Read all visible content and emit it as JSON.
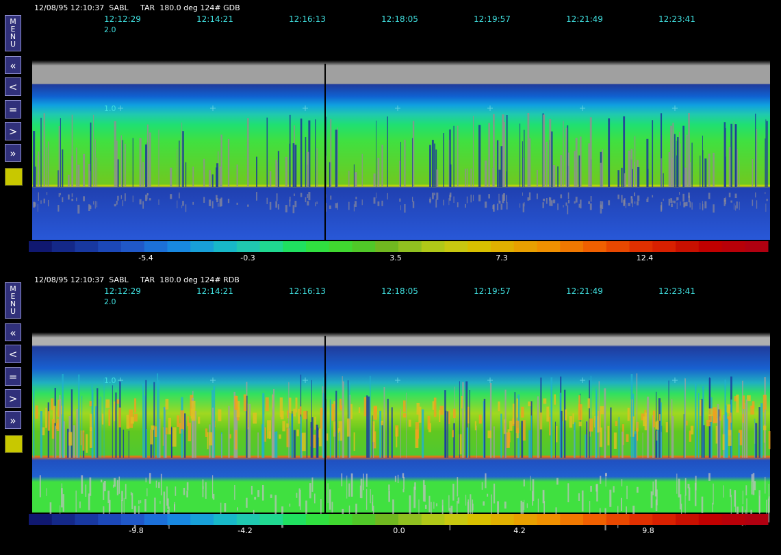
{
  "panels": [
    {
      "header": "12/08/95 12:10:37  SABL     TAR  180.0 deg 124# GDB",
      "buttons": [
        "MENU",
        "«",
        "<",
        "=",
        ">",
        "»"
      ],
      "times": [
        "12:12:29",
        "12:14:21",
        "12:16:13",
        "12:18:05",
        "12:19:57",
        "12:21:49",
        "12:23:41"
      ],
      "top_label": "2.0",
      "range_label": "1.0",
      "colorbar_labels": [
        "-5.4",
        "-0.3",
        "3.5",
        "7.3",
        "12.4"
      ]
    },
    {
      "header": "12/08/95 12:10:37  SABL     TAR  180.0 deg 124# RDB",
      "buttons": [
        "MENU",
        "«",
        "<",
        "=",
        ">",
        "»"
      ],
      "times": [
        "12:12:29",
        "12:14:21",
        "12:16:13",
        "12:18:05",
        "12:19:57",
        "12:21:49",
        "12:23:41"
      ],
      "top_label": "2.0",
      "range_label": "1.0",
      "colorbar_labels": [
        "-9.8",
        "-4.2",
        "0.0",
        "4.2",
        "9.8"
      ]
    }
  ]
}
